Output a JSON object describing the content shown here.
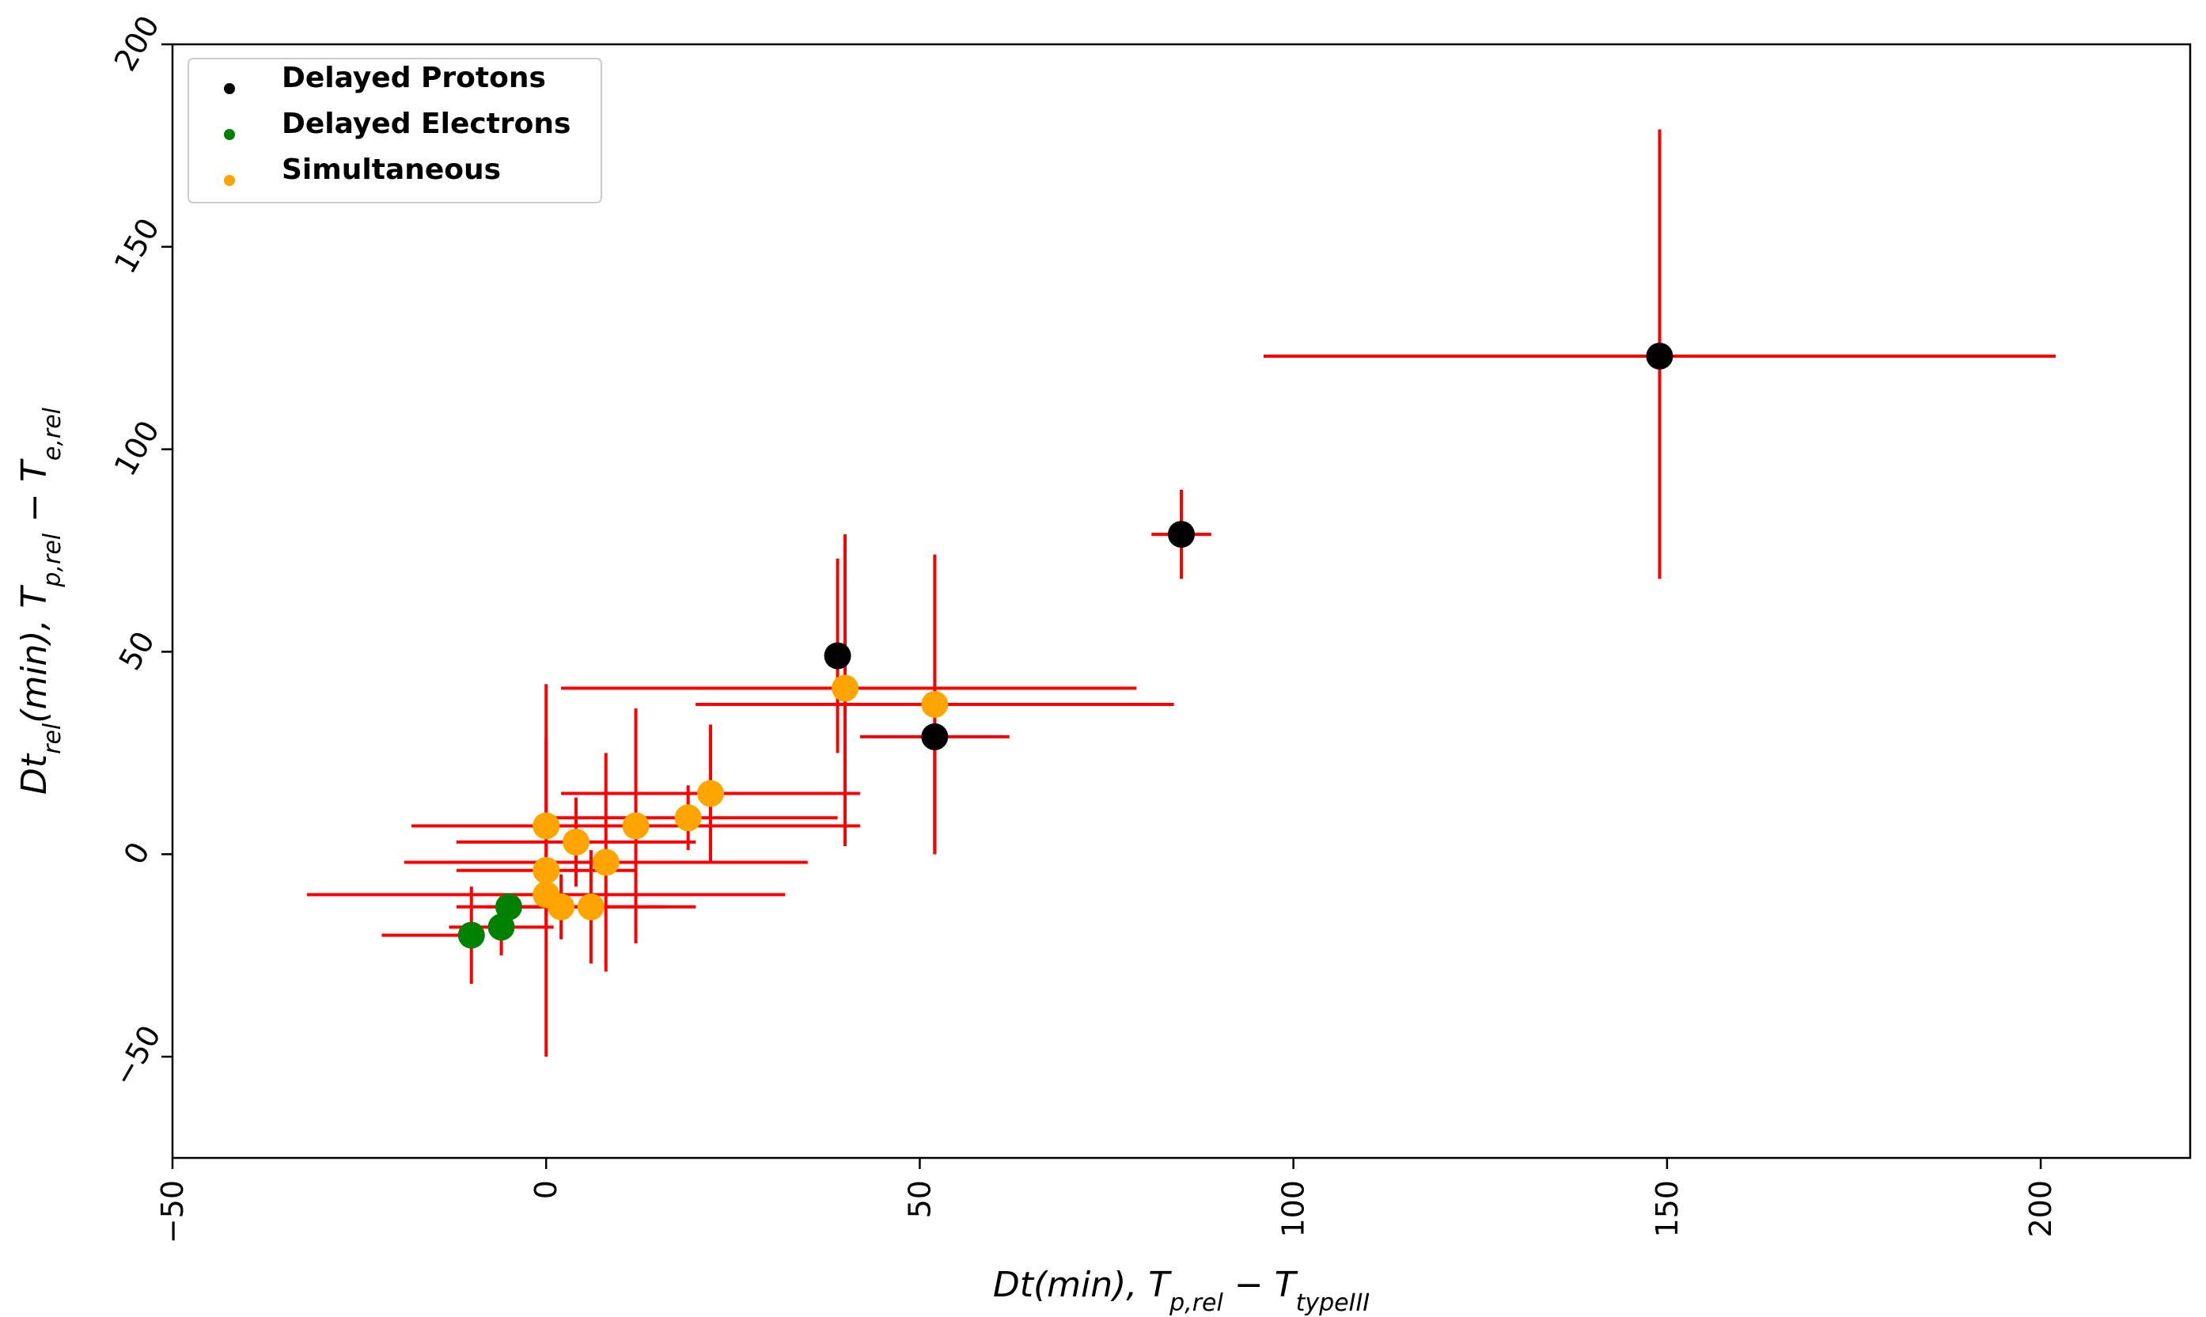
{
  "chart_data": {
    "type": "scatter",
    "xlabel": "Dt(min), T_{p,rel} − T_{typeIII}",
    "ylabel": "Dt_{rel}(min), T_{p,rel} − T_{e,rel}",
    "xlim": [
      -50,
      220
    ],
    "ylim": [
      -75,
      200
    ],
    "xticks": [
      -50,
      0,
      50,
      100,
      150,
      200
    ],
    "yticks": [
      -50,
      0,
      50,
      100,
      150,
      200
    ],
    "grid": false,
    "legend_position": "top-left",
    "error_bar_color": "#ff0000",
    "series": [
      {
        "name": "Delayed Protons",
        "color": "#000000",
        "points": [
          {
            "x": 149,
            "y": 123,
            "xerr_lo": 53,
            "xerr_hi": 53,
            "yerr_lo": 55,
            "yerr_hi": 56
          },
          {
            "x": 85,
            "y": 79,
            "xerr_lo": 4,
            "xerr_hi": 4,
            "yerr_lo": 11,
            "yerr_hi": 11
          },
          {
            "x": 39,
            "y": 49,
            "xerr_lo": 0,
            "xerr_hi": 0,
            "yerr_lo": 24,
            "yerr_hi": 24
          },
          {
            "x": 52,
            "y": 29,
            "xerr_lo": 10,
            "xerr_hi": 10,
            "yerr_lo": 29,
            "yerr_hi": 0
          }
        ]
      },
      {
        "name": "Delayed Electrons",
        "color": "#008000",
        "points": [
          {
            "x": -10,
            "y": -20,
            "xerr_lo": 12,
            "xerr_hi": 0,
            "yerr_lo": 12,
            "yerr_hi": 12
          },
          {
            "x": -6,
            "y": -18,
            "xerr_lo": 7,
            "xerr_hi": 7,
            "yerr_lo": 7,
            "yerr_hi": 7
          },
          {
            "x": -5,
            "y": -13,
            "xerr_lo": 0,
            "xerr_hi": 6,
            "yerr_lo": 0,
            "yerr_hi": 0
          }
        ]
      },
      {
        "name": "Simultaneous",
        "color": "#ffa500",
        "points": [
          {
            "x": 40,
            "y": 41,
            "xerr_lo": 38,
            "xerr_hi": 39,
            "yerr_lo": 39,
            "yerr_hi": 38
          },
          {
            "x": 52,
            "y": 37,
            "xerr_lo": 32,
            "xerr_hi": 32,
            "yerr_lo": 37,
            "yerr_hi": 37
          },
          {
            "x": 22,
            "y": 15,
            "xerr_lo": 20,
            "xerr_hi": 20,
            "yerr_lo": 17,
            "yerr_hi": 17
          },
          {
            "x": 19,
            "y": 9,
            "xerr_lo": 20,
            "xerr_hi": 20,
            "yerr_lo": 8,
            "yerr_hi": 8
          },
          {
            "x": 12,
            "y": 7,
            "xerr_lo": 30,
            "xerr_hi": 30,
            "yerr_lo": 29,
            "yerr_hi": 29
          },
          {
            "x": 0,
            "y": 7,
            "xerr_lo": 18,
            "xerr_hi": 18,
            "yerr_lo": 22,
            "yerr_hi": 22
          },
          {
            "x": 4,
            "y": 3,
            "xerr_lo": 16,
            "xerr_hi": 16,
            "yerr_lo": 11,
            "yerr_hi": 11
          },
          {
            "x": 8,
            "y": -2,
            "xerr_lo": 27,
            "xerr_hi": 27,
            "yerr_lo": 27,
            "yerr_hi": 27
          },
          {
            "x": 0,
            "y": -4,
            "xerr_lo": 12,
            "xerr_hi": 12,
            "yerr_lo": 46,
            "yerr_hi": 46
          },
          {
            "x": 0,
            "y": -10,
            "xerr_lo": 32,
            "xerr_hi": 32,
            "yerr_lo": 8,
            "yerr_hi": 8
          },
          {
            "x": 2,
            "y": -13,
            "xerr_lo": 14,
            "xerr_hi": 14,
            "yerr_lo": 8,
            "yerr_hi": 8
          },
          {
            "x": 6,
            "y": -13,
            "xerr_lo": 14,
            "xerr_hi": 14,
            "yerr_lo": 14,
            "yerr_hi": 14
          }
        ]
      }
    ]
  }
}
